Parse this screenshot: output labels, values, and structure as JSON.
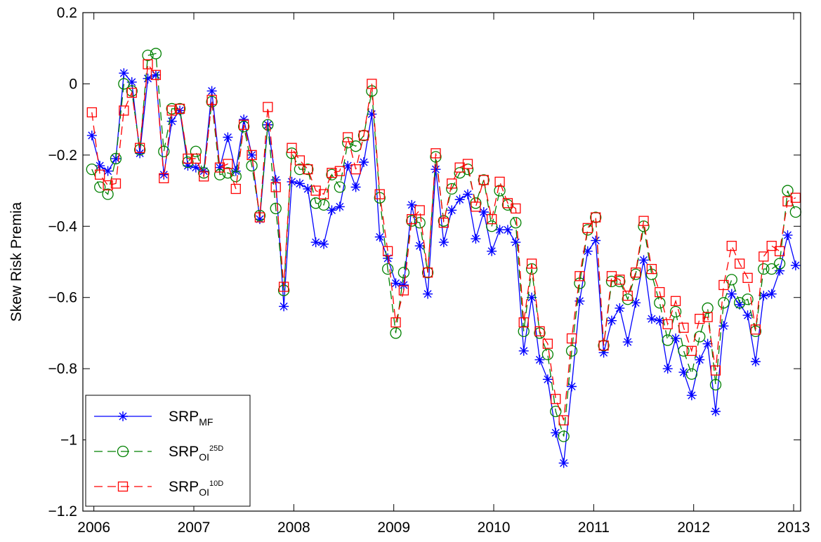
{
  "chart_data": {
    "type": "line",
    "ylabel": "Skew Risk Premia",
    "xlim": [
      2005.89,
      2013.07
    ],
    "xticks": [
      2006,
      2007,
      2008,
      2009,
      2010,
      2011,
      2012,
      2013
    ],
    "ylim": [
      -1.2,
      0.2
    ],
    "yticks": [
      0.2,
      0,
      {
        "value": -0.2,
        "label": "−0.2"
      },
      {
        "value": -0.4,
        "label": "−0.4"
      },
      {
        "value": -0.6,
        "label": "−0.6"
      },
      {
        "value": -0.8,
        "label": "−0.8"
      },
      {
        "value": -1,
        "label": "−1"
      },
      {
        "value": -1.2,
        "label": "−1.2"
      }
    ],
    "legend": "lower left",
    "x": [
      2005.98,
      2006.06,
      2006.14,
      2006.22,
      2006.3,
      2006.38,
      2006.46,
      2006.54,
      2006.62,
      2006.7,
      2006.78,
      2006.86,
      2006.94,
      2007.02,
      2007.1,
      2007.18,
      2007.26,
      2007.34,
      2007.42,
      2007.5,
      2007.58,
      2007.66,
      2007.74,
      2007.82,
      2007.9,
      2007.98,
      2008.06,
      2008.14,
      2008.22,
      2008.3,
      2008.38,
      2008.46,
      2008.54,
      2008.62,
      2008.7,
      2008.78,
      2008.86,
      2008.94,
      2009.02,
      2009.1,
      2009.18,
      2009.26,
      2009.34,
      2009.42,
      2009.5,
      2009.58,
      2009.66,
      2009.74,
      2009.82,
      2009.9,
      2009.98,
      2010.06,
      2010.14,
      2010.22,
      2010.3,
      2010.38,
      2010.46,
      2010.54,
      2010.62,
      2010.7,
      2010.78,
      2010.86,
      2010.94,
      2011.02,
      2011.1,
      2011.18,
      2011.26,
      2011.34,
      2011.42,
      2011.5,
      2011.58,
      2011.66,
      2011.74,
      2011.82,
      2011.9,
      2011.98,
      2012.06,
      2012.14,
      2012.22,
      2012.3,
      2012.38,
      2012.46,
      2012.54,
      2012.62,
      2012.7,
      2012.78,
      2012.86,
      2012.94,
      2013.02
    ],
    "series": [
      {
        "name": "SRP",
        "subscript": "MF",
        "color": "#0000ff",
        "marker": "star",
        "dash": false,
        "values": [
          -0.145,
          -0.23,
          -0.245,
          -0.21,
          0.03,
          0.005,
          -0.195,
          0.015,
          0.025,
          -0.255,
          -0.105,
          -0.075,
          -0.23,
          -0.235,
          -0.245,
          -0.02,
          -0.235,
          -0.15,
          -0.245,
          -0.1,
          -0.2,
          -0.38,
          -0.115,
          -0.27,
          -0.625,
          -0.275,
          -0.28,
          -0.295,
          -0.445,
          -0.45,
          -0.355,
          -0.345,
          -0.23,
          -0.29,
          -0.22,
          -0.085,
          -0.43,
          -0.49,
          -0.56,
          -0.565,
          -0.34,
          -0.455,
          -0.59,
          -0.24,
          -0.445,
          -0.355,
          -0.325,
          -0.31,
          -0.435,
          -0.36,
          -0.47,
          -0.41,
          -0.41,
          -0.445,
          -0.75,
          -0.6,
          -0.775,
          -0.83,
          -0.98,
          -1.065,
          -0.85,
          -0.61,
          -0.47,
          -0.44,
          -0.755,
          -0.665,
          -0.63,
          -0.725,
          -0.615,
          -0.495,
          -0.66,
          -0.665,
          -0.8,
          -0.715,
          -0.81,
          -0.875,
          -0.775,
          -0.73,
          -0.92,
          -0.68,
          -0.59,
          -0.62,
          -0.65,
          -0.78,
          -0.595,
          -0.59,
          -0.525,
          -0.425,
          -0.51
        ]
      },
      {
        "name": "SRP",
        "subscript": "OI",
        "superscript": "25D",
        "color": "#008000",
        "marker": "circle",
        "dash": true,
        "values": [
          -0.24,
          -0.29,
          -0.31,
          -0.21,
          0.0,
          -0.02,
          -0.185,
          0.08,
          0.085,
          -0.19,
          -0.07,
          -0.07,
          -0.22,
          -0.19,
          -0.25,
          -0.05,
          -0.255,
          -0.25,
          -0.26,
          -0.12,
          -0.23,
          -0.37,
          -0.115,
          -0.35,
          -0.58,
          -0.195,
          -0.24,
          -0.24,
          -0.335,
          -0.34,
          -0.255,
          -0.29,
          -0.165,
          -0.175,
          -0.145,
          -0.02,
          -0.32,
          -0.52,
          -0.7,
          -0.53,
          -0.385,
          -0.39,
          -0.53,
          -0.205,
          -0.385,
          -0.295,
          -0.25,
          -0.24,
          -0.335,
          -0.27,
          -0.4,
          -0.3,
          -0.34,
          -0.39,
          -0.695,
          -0.52,
          -0.7,
          -0.76,
          -0.92,
          -0.99,
          -0.75,
          -0.56,
          -0.41,
          -0.375,
          -0.735,
          -0.555,
          -0.555,
          -0.605,
          -0.535,
          -0.4,
          -0.535,
          -0.615,
          -0.72,
          -0.64,
          -0.75,
          -0.815,
          -0.71,
          -0.63,
          -0.845,
          -0.615,
          -0.55,
          -0.615,
          -0.605,
          -0.695,
          -0.52,
          -0.52,
          -0.505,
          -0.3,
          -0.36
        ]
      },
      {
        "name": "SRP",
        "subscript": "OI",
        "superscript": "10D",
        "color": "#ff0000",
        "marker": "square",
        "dash": true,
        "values": [
          -0.08,
          -0.255,
          -0.285,
          -0.28,
          -0.075,
          -0.025,
          -0.18,
          0.055,
          0.025,
          -0.265,
          -0.075,
          -0.07,
          -0.21,
          -0.21,
          -0.26,
          -0.045,
          -0.235,
          -0.225,
          -0.295,
          -0.115,
          -0.2,
          -0.375,
          -0.065,
          -0.29,
          -0.57,
          -0.18,
          -0.215,
          -0.24,
          -0.3,
          -0.31,
          -0.25,
          -0.245,
          -0.15,
          -0.24,
          -0.145,
          0.0,
          -0.31,
          -0.47,
          -0.67,
          -0.58,
          -0.38,
          -0.355,
          -0.53,
          -0.195,
          -0.39,
          -0.28,
          -0.235,
          -0.225,
          -0.345,
          -0.27,
          -0.38,
          -0.275,
          -0.335,
          -0.35,
          -0.67,
          -0.505,
          -0.695,
          -0.73,
          -0.885,
          -0.945,
          -0.715,
          -0.54,
          -0.405,
          -0.375,
          -0.735,
          -0.54,
          -0.55,
          -0.595,
          -0.53,
          -0.385,
          -0.52,
          -0.585,
          -0.675,
          -0.61,
          -0.685,
          -0.75,
          -0.66,
          -0.655,
          -0.805,
          -0.565,
          -0.455,
          -0.505,
          -0.545,
          -0.69,
          -0.485,
          -0.455,
          -0.47,
          -0.33,
          -0.32
        ]
      }
    ]
  }
}
